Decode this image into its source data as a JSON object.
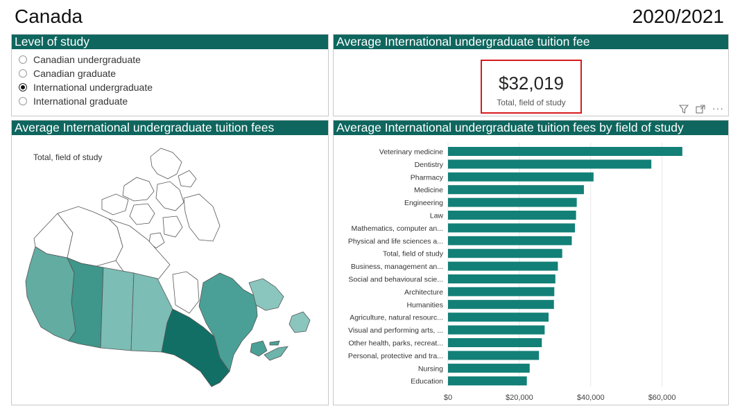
{
  "page": {
    "title": "Canada",
    "year": "2020/2021"
  },
  "level_of_study": {
    "header": "Level of study",
    "options": [
      {
        "label": "Canadian undergraduate",
        "selected": false
      },
      {
        "label": "Canadian graduate",
        "selected": false
      },
      {
        "label": "International undergraduate",
        "selected": true
      },
      {
        "label": "International graduate",
        "selected": false
      }
    ]
  },
  "kpi": {
    "header": "Average International undergraduate tuition fee",
    "value": "$32,019",
    "label": "Total, field of study",
    "highlight_color": "#d9191c",
    "icons": [
      "filter-icon",
      "focus-mode-icon",
      "more-options-icon"
    ]
  },
  "map": {
    "header": "Average International undergraduate tuition fees",
    "label": "Total, field of study"
  },
  "chart_data": {
    "type": "bar",
    "orientation": "horizontal",
    "title": "Average International undergraduate tuition fees by field of study",
    "bar_color": "#138077",
    "categories": [
      "Veterinary medicine",
      "Dentistry",
      "Pharmacy",
      "Medicine",
      "Engineering",
      "Law",
      "Mathematics, computer an...",
      "Physical and life sciences a...",
      "Total, field of study",
      "Business, management an...",
      "Social and behavioural scie...",
      "Architecture",
      "Humanities",
      "Agriculture, natural resourc...",
      "Visual and performing arts, ...",
      "Other health, parks, recreat...",
      "Personal, protective and tra...",
      "Nursing",
      "Education"
    ],
    "values": [
      65700,
      57000,
      40800,
      38100,
      36100,
      35900,
      35600,
      34700,
      32019,
      30800,
      30100,
      29800,
      29700,
      28200,
      27100,
      26300,
      25500,
      22900,
      22100
    ],
    "xlim": [
      0,
      70000
    ],
    "ticks": [
      0,
      20000,
      40000,
      60000
    ],
    "tick_labels": [
      "$0",
      "$20,000",
      "$40,000",
      "$60,000"
    ],
    "gridlines": true
  }
}
